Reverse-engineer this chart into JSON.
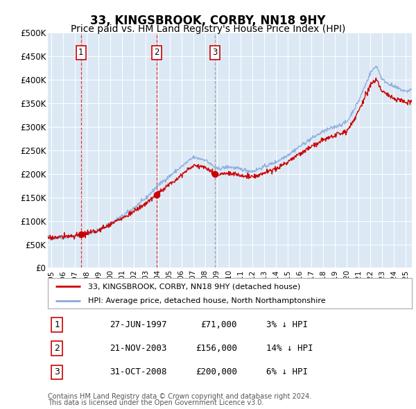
{
  "title": "33, KINGSBROOK, CORBY, NN18 9HY",
  "subtitle": "Price paid vs. HM Land Registry's House Price Index (HPI)",
  "title_fontsize": 12,
  "subtitle_fontsize": 10,
  "plot_bg_color": "#dce9f5",
  "fig_bg_color": "#ffffff",
  "ylim": [
    0,
    500000
  ],
  "xlim_start": 1994.7,
  "xlim_end": 2025.5,
  "yticks": [
    0,
    50000,
    100000,
    150000,
    200000,
    250000,
    300000,
    350000,
    400000,
    450000,
    500000
  ],
  "ytick_labels": [
    "£0",
    "£50K",
    "£100K",
    "£150K",
    "£200K",
    "£250K",
    "£300K",
    "£350K",
    "£400K",
    "£450K",
    "£500K"
  ],
  "sales": [
    {
      "num": 1,
      "year": 1997.49,
      "price": 71000,
      "date_label": "27-JUN-1997",
      "amount": "£71,000",
      "pct": "3% ↓ HPI",
      "vline_color": "#dd0000"
    },
    {
      "num": 2,
      "year": 2003.89,
      "price": 156000,
      "date_label": "21-NOV-2003",
      "amount": "£156,000",
      "pct": "14% ↓ HPI",
      "vline_color": "#dd0000"
    },
    {
      "num": 3,
      "year": 2008.83,
      "price": 200000,
      "date_label": "31-OCT-2008",
      "amount": "£200,000",
      "pct": "6% ↓ HPI",
      "vline_color": "#888888"
    }
  ],
  "legend_line1": "33, KINGSBROOK, CORBY, NN18 9HY (detached house)",
  "legend_line2": "HPI: Average price, detached house, North Northamptonshire",
  "line1_color": "#cc0000",
  "line2_color": "#88aadd",
  "sale_dot_color": "#cc0000",
  "footer1": "Contains HM Land Registry data © Crown copyright and database right 2024.",
  "footer2": "This data is licensed under the Open Government Licence v3.0."
}
